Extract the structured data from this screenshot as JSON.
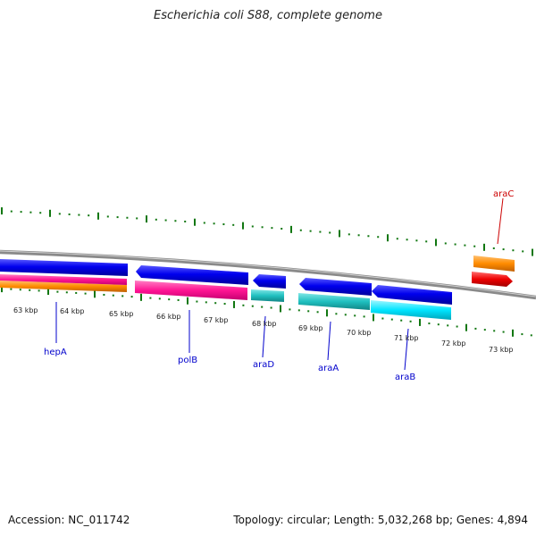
{
  "header": {
    "title": "Escherichia coli S88, complete genome"
  },
  "footer": {
    "accession": "Accession: NC_011742",
    "topology": "Topology: circular; Length: 5,032,268 bp; Genes: 4,894"
  },
  "kbp_labels": [
    "63 kbp",
    "64 kbp",
    "65 kbp",
    "66 kbp",
    "67 kbp",
    "68 kbp",
    "69 kbp",
    "70 kbp",
    "71 kbp",
    "72 kbp",
    "73 kbp"
  ],
  "genes": [
    {
      "name": "hepA",
      "color": "#0000cc"
    },
    {
      "name": "polB",
      "color": "#0000cc"
    },
    {
      "name": "araD",
      "color": "#0000cc"
    },
    {
      "name": "araA",
      "color": "#0000cc"
    },
    {
      "name": "araB",
      "color": "#0000cc"
    },
    {
      "name": "araC",
      "color": "#cc0000"
    }
  ],
  "colors": {
    "forward_strand": "#0000ee",
    "pink": "#ff1493",
    "orange": "#ff8c00",
    "teal": "#20c0c0",
    "cyan": "#00e5ff",
    "red": "#ee0000",
    "tick_green": "#117711",
    "backbone": "#888888"
  }
}
